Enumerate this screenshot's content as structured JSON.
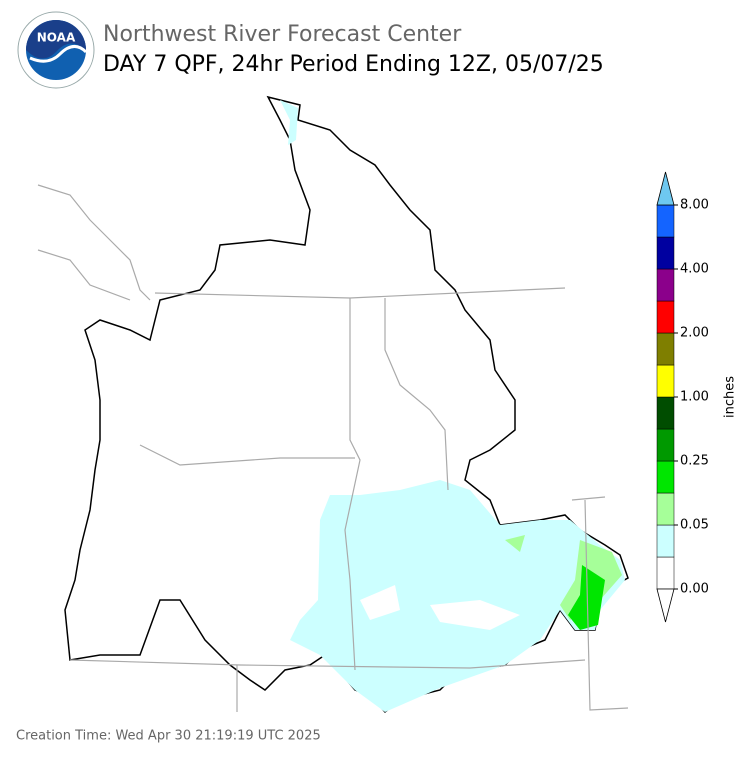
{
  "header": {
    "title": "Northwest River Forecast Center",
    "subtitle": "DAY 7 QPF, 24hr Period Ending 12Z, 05/07/25"
  },
  "logo": {
    "text": "NOAA"
  },
  "colorbar": {
    "label": "inches",
    "ticks": [
      "8.00",
      "4.00",
      "2.00",
      "1.00",
      "0.25",
      "0.05",
      "0.00"
    ],
    "colors": [
      "#ffffff",
      "#ccffff",
      "#a6ff99",
      "#00e600",
      "#009900",
      "#004d00",
      "#ffff00",
      "#7f7f00",
      "#ff0000",
      "#8b008b",
      "#0000a0",
      "#1464ff"
    ],
    "over_color": "#6ec8f0",
    "under_color": "#ffffff"
  },
  "footer": {
    "creation_time": "Creation Time: Wed Apr 30 21:19:19 UTC 2025"
  }
}
